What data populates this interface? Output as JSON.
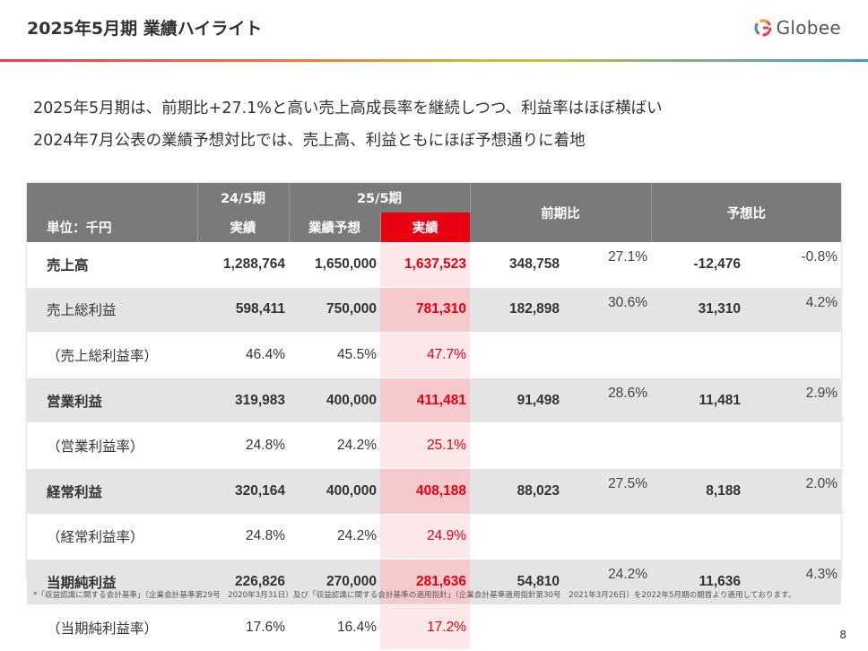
{
  "header": {
    "title": "2025年5月期 業績ハイライト",
    "logo_text": "Globee",
    "brand_color": "#e60012"
  },
  "headlines": [
    "2025年5月期は、前期比+27.1%と高い売上高成長率を継続しつつ、利益率はほぼ横ばい",
    "2024年7月公表の業績予想対比では、売上高、利益ともにほぼ予想通りに着地"
  ],
  "table": {
    "unit_label": "単位：千円",
    "col_24": "24/5期",
    "col_25": "25/5期",
    "sub_actual_24": "実績",
    "sub_forecast_25": "業績予想",
    "sub_actual_25": "実績",
    "col_yoy": "前期比",
    "col_vs_forecast": "予想比",
    "rows": [
      {
        "label": "売上高",
        "a24": "1,288,764",
        "f25": "1,650,000",
        "a25": "1,637,523",
        "yoy_amt": "348,758",
        "yoy_pct": "27.1%",
        "fc_amt": "-12,476",
        "fc_pct": "-0.8%"
      },
      {
        "label": "売上総利益",
        "a24": "598,411",
        "f25": "750,000",
        "a25": "781,310",
        "yoy_amt": "182,898",
        "yoy_pct": "30.6%",
        "fc_amt": "31,310",
        "fc_pct": "4.2%"
      },
      {
        "label": "（売上総利益率）",
        "a24": "46.4%",
        "f25": "45.5%",
        "a25": "47.7%",
        "yoy_amt": "",
        "yoy_pct": "",
        "fc_amt": "",
        "fc_pct": ""
      },
      {
        "label": "営業利益",
        "a24": "319,983",
        "f25": "400,000",
        "a25": "411,481",
        "yoy_amt": "91,498",
        "yoy_pct": "28.6%",
        "fc_amt": "11,481",
        "fc_pct": "2.9%"
      },
      {
        "label": "（営業利益率）",
        "a24": "24.8%",
        "f25": "24.2%",
        "a25": "25.1%",
        "yoy_amt": "",
        "yoy_pct": "",
        "fc_amt": "",
        "fc_pct": ""
      },
      {
        "label": "経常利益",
        "a24": "320,164",
        "f25": "400,000",
        "a25": "408,188",
        "yoy_amt": "88,023",
        "yoy_pct": "27.5%",
        "fc_amt": "8,188",
        "fc_pct": "2.0%"
      },
      {
        "label": "（経常利益率）",
        "a24": "24.8%",
        "f25": "24.2%",
        "a25": "24.9%",
        "yoy_amt": "",
        "yoy_pct": "",
        "fc_amt": "",
        "fc_pct": ""
      },
      {
        "label": "当期純利益",
        "a24": "226,826",
        "f25": "270,000",
        "a25": "281,636",
        "yoy_amt": "54,810",
        "yoy_pct": "24.2%",
        "fc_amt": "11,636",
        "fc_pct": "4.3%"
      },
      {
        "label": "（当期純利益率）",
        "a24": "17.6%",
        "f25": "16.4%",
        "a25": "17.2%",
        "yoy_amt": "",
        "yoy_pct": "",
        "fc_amt": "",
        "fc_pct": ""
      }
    ]
  },
  "footnote": "*「収益認識に関する会計基準」（企業会計基準第29号　2020年3月31日）及び「収益認識に関する会計基準の適用指針」（企業会計基準適用指針第30号　2021年3月26日）を2022年5月期の期首より適用しております。",
  "page_number": "8"
}
